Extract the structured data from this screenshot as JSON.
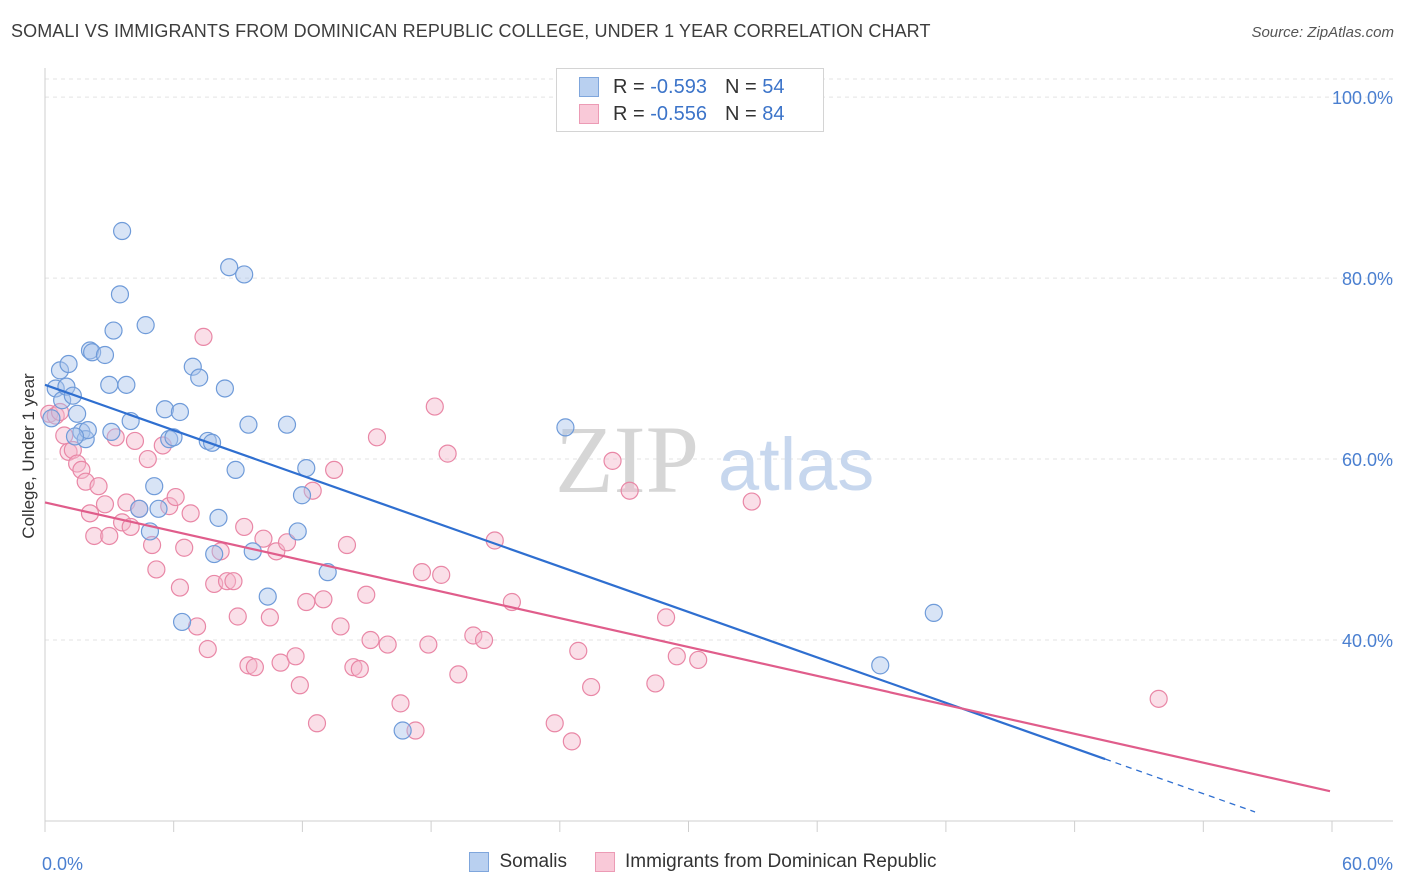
{
  "title": "SOMALI VS IMMIGRANTS FROM DOMINICAN REPUBLIC COLLEGE, UNDER 1 YEAR CORRELATION CHART",
  "source": "Source: ZipAtlas.com",
  "watermark": {
    "zip": "ZIP",
    "atlas": "atlas"
  },
  "legend_top": [
    {
      "r_label": "R =",
      "r_value": "-0.593",
      "n_label": "N =",
      "n_value": "54"
    },
    {
      "r_label": "R =",
      "r_value": "-0.556",
      "n_label": "N =",
      "n_value": "84"
    }
  ],
  "chart_data": {
    "type": "scatter",
    "title": "SOMALI VS IMMIGRANTS FROM DOMINICAN REPUBLIC COLLEGE, UNDER 1 YEAR CORRELATION CHART",
    "xlabel": "",
    "ylabel": "College, Under 1 year",
    "xlim": [
      0,
      60
    ],
    "ylim": [
      20,
      102
    ],
    "x_tick_labels": [
      "0.0%",
      "60.0%"
    ],
    "y_ticks": [
      40,
      60,
      80,
      100
    ],
    "y_tick_labels": [
      "40.0%",
      "60.0%",
      "80.0%",
      "100.0%"
    ],
    "grid": true,
    "legend_placement": "top-center",
    "series": [
      {
        "name": "Somalis",
        "color": "#a9c4ec",
        "edge": "#6f9bd9",
        "line_color": "#2f6fd0",
        "r": -0.593,
        "n": 54,
        "trend": {
          "x0": 0,
          "y0": 68.2,
          "x1": 56.5,
          "y1": 21.0,
          "solid_until": 49.5
        },
        "points": [
          [
            0.3,
            64.5
          ],
          [
            0.5,
            67.8
          ],
          [
            0.8,
            66.5
          ],
          [
            0.7,
            69.8
          ],
          [
            1.0,
            68.0
          ],
          [
            1.1,
            70.5
          ],
          [
            1.3,
            67.0
          ],
          [
            1.5,
            65.0
          ],
          [
            1.7,
            63.0
          ],
          [
            1.9,
            62.2
          ],
          [
            2.0,
            63.2
          ],
          [
            2.1,
            72.0
          ],
          [
            2.2,
            71.8
          ],
          [
            2.8,
            71.5
          ],
          [
            3.0,
            68.2
          ],
          [
            3.2,
            74.2
          ],
          [
            3.5,
            78.2
          ],
          [
            3.6,
            85.2
          ],
          [
            3.8,
            68.2
          ],
          [
            4.0,
            64.2
          ],
          [
            4.4,
            54.5
          ],
          [
            4.7,
            74.8
          ],
          [
            4.9,
            52.0
          ],
          [
            5.1,
            57.0
          ],
          [
            5.3,
            54.5
          ],
          [
            5.6,
            65.5
          ],
          [
            5.8,
            62.2
          ],
          [
            6.0,
            62.4
          ],
          [
            6.3,
            65.2
          ],
          [
            6.4,
            42.0
          ],
          [
            6.9,
            70.2
          ],
          [
            7.2,
            69.0
          ],
          [
            7.6,
            62.0
          ],
          [
            7.8,
            61.8
          ],
          [
            7.9,
            49.5
          ],
          [
            8.1,
            53.5
          ],
          [
            8.4,
            67.8
          ],
          [
            8.6,
            81.2
          ],
          [
            8.9,
            58.8
          ],
          [
            9.3,
            80.4
          ],
          [
            9.5,
            63.8
          ],
          [
            9.7,
            49.8
          ],
          [
            10.4,
            44.8
          ],
          [
            11.3,
            63.8
          ],
          [
            11.8,
            52.0
          ],
          [
            12.0,
            56.0
          ],
          [
            12.2,
            59.0
          ],
          [
            13.2,
            47.5
          ],
          [
            16.7,
            30.0
          ],
          [
            24.3,
            63.5
          ],
          [
            3.1,
            63.0
          ],
          [
            1.4,
            62.5
          ],
          [
            39.0,
            37.2
          ],
          [
            41.5,
            43.0
          ]
        ]
      },
      {
        "name": "Immigrants from Dominican Republic",
        "color": "#f5b8cb",
        "edge": "#e987a6",
        "line_color": "#e05d8b",
        "r": -0.556,
        "n": 84,
        "trend": {
          "x0": 0,
          "y0": 55.2,
          "x1": 60,
          "y1": 23.3
        },
        "points": [
          [
            0.2,
            65.0
          ],
          [
            0.5,
            64.8
          ],
          [
            0.7,
            65.2
          ],
          [
            0.9,
            62.6
          ],
          [
            1.1,
            60.8
          ],
          [
            1.3,
            61.0
          ],
          [
            1.5,
            59.5
          ],
          [
            1.7,
            58.8
          ],
          [
            1.9,
            57.5
          ],
          [
            2.1,
            54.0
          ],
          [
            2.3,
            51.5
          ],
          [
            2.5,
            57.0
          ],
          [
            2.8,
            55.0
          ],
          [
            3.0,
            51.5
          ],
          [
            3.3,
            62.4
          ],
          [
            3.6,
            53.0
          ],
          [
            3.8,
            55.2
          ],
          [
            4.0,
            52.5
          ],
          [
            4.2,
            62.0
          ],
          [
            4.4,
            54.5
          ],
          [
            4.8,
            60.0
          ],
          [
            5.0,
            50.5
          ],
          [
            5.2,
            47.8
          ],
          [
            5.5,
            61.5
          ],
          [
            5.8,
            54.8
          ],
          [
            6.1,
            55.8
          ],
          [
            6.3,
            45.8
          ],
          [
            6.5,
            50.2
          ],
          [
            6.8,
            54.0
          ],
          [
            7.1,
            41.5
          ],
          [
            7.4,
            73.5
          ],
          [
            7.6,
            39.0
          ],
          [
            7.9,
            46.2
          ],
          [
            8.2,
            49.8
          ],
          [
            8.5,
            46.5
          ],
          [
            8.8,
            46.5
          ],
          [
            9.0,
            42.6
          ],
          [
            9.3,
            52.5
          ],
          [
            9.5,
            37.2
          ],
          [
            9.8,
            37.0
          ],
          [
            10.2,
            51.2
          ],
          [
            10.5,
            42.5
          ],
          [
            10.8,
            49.8
          ],
          [
            11.0,
            37.5
          ],
          [
            11.3,
            50.8
          ],
          [
            11.7,
            38.2
          ],
          [
            11.9,
            35.0
          ],
          [
            12.2,
            44.2
          ],
          [
            12.5,
            56.5
          ],
          [
            12.7,
            30.8
          ],
          [
            13.0,
            44.5
          ],
          [
            13.5,
            58.8
          ],
          [
            13.8,
            41.5
          ],
          [
            14.1,
            50.5
          ],
          [
            14.4,
            37.0
          ],
          [
            14.7,
            36.8
          ],
          [
            15.0,
            45.0
          ],
          [
            15.2,
            40.0
          ],
          [
            15.5,
            62.4
          ],
          [
            16.0,
            39.5
          ],
          [
            16.6,
            33.0
          ],
          [
            17.3,
            30.0
          ],
          [
            17.6,
            47.5
          ],
          [
            17.9,
            39.5
          ],
          [
            18.2,
            65.8
          ],
          [
            18.5,
            47.2
          ],
          [
            18.8,
            60.6
          ],
          [
            19.3,
            36.2
          ],
          [
            20.0,
            40.5
          ],
          [
            20.5,
            40.0
          ],
          [
            21.0,
            51.0
          ],
          [
            21.8,
            44.2
          ],
          [
            23.8,
            30.8
          ],
          [
            24.6,
            28.8
          ],
          [
            24.9,
            38.8
          ],
          [
            25.5,
            34.8
          ],
          [
            26.5,
            59.8
          ],
          [
            27.3,
            56.5
          ],
          [
            28.5,
            35.2
          ],
          [
            29.0,
            42.5
          ],
          [
            29.5,
            38.2
          ],
          [
            30.5,
            37.8
          ],
          [
            33.0,
            55.3
          ],
          [
            52.0,
            33.5
          ]
        ]
      }
    ]
  }
}
